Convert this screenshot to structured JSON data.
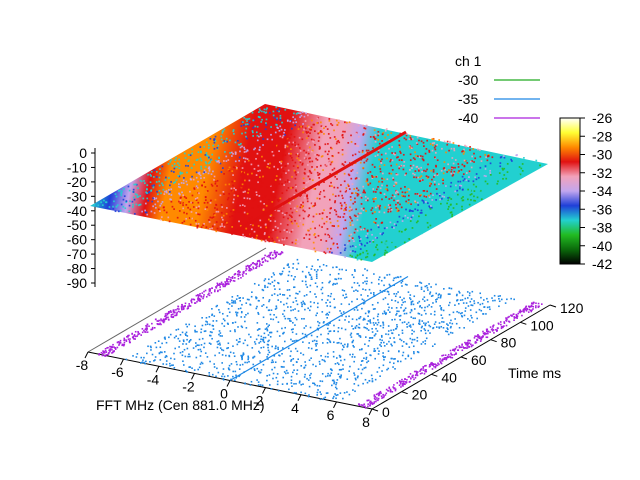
{
  "chart_data": {
    "type": "surface3d",
    "title": "",
    "xlabel": "FFT MHz (Cen 881.0 MHz)",
    "ylabel": "Time ms",
    "zlabel": "",
    "x_ticks": [
      "-8",
      "-6",
      "-4",
      "-2",
      "0",
      "2",
      "4",
      "6",
      "8"
    ],
    "y_ticks": [
      "0",
      "20",
      "40",
      "60",
      "80",
      "100",
      "120"
    ],
    "z_ticks": [
      "0",
      "-10",
      "-20",
      "-30",
      "-40",
      "-50",
      "-60",
      "-70",
      "-80",
      "-90"
    ],
    "xlim": [
      -8,
      8
    ],
    "ylim": [
      0,
      120
    ],
    "zlim": [
      -90,
      0
    ],
    "legend": {
      "title": "ch 1",
      "placement": "top-right",
      "entries": [
        {
          "label": "-30",
          "color": "#22aa22"
        },
        {
          "label": "-35",
          "color": "#1e88e5"
        },
        {
          "label": "-40",
          "color": "#aa22dd"
        }
      ]
    },
    "colorbox": {
      "labels": [
        "-26",
        "-28",
        "-30",
        "-32",
        "-34",
        "-36",
        "-38",
        "-40",
        "-42"
      ],
      "range": [
        -42,
        -26
      ],
      "colors": [
        "#000000",
        "#0b6a0b",
        "#22bb22",
        "#22d0d0",
        "#1f3fd8",
        "#c2a6ee",
        "#f2a2ba",
        "#e11111",
        "#ff8a00",
        "#ffff33",
        "#ffffff"
      ]
    },
    "surface_profile": {
      "x": [
        -8,
        -7,
        -6,
        -5,
        -4,
        -2,
        0,
        2,
        4,
        5,
        6,
        7,
        8
      ],
      "z": [
        -38,
        -36,
        -34,
        -31,
        -30,
        -30,
        -30.5,
        -31,
        -32,
        -32.5,
        -34,
        -36.5,
        -38
      ]
    },
    "ridge_x": 0
  }
}
